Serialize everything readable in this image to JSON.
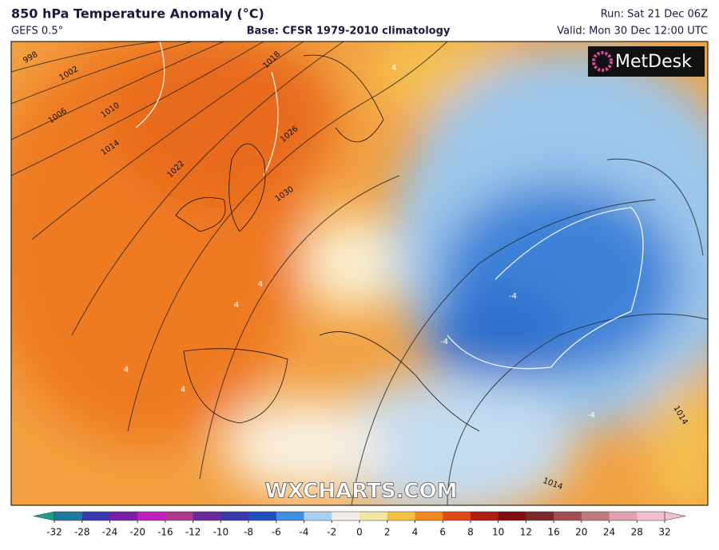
{
  "header": {
    "title": "850 hPa Temperature Anomaly (°C)",
    "model": "GEFS 0.5°",
    "base": "Base: CFSR 1979-2010 climatology",
    "run": "Run: Sat 21 Dec 06Z",
    "valid": "Valid: Mon 30 Dec 12:00 UTC"
  },
  "logo": "MetDesk",
  "watermark": "WXCHARTS.COM",
  "isobar_labels": [
    "998",
    "1002",
    "1006",
    "1010",
    "1014",
    "1018",
    "1022",
    "1026",
    "1030",
    "1014",
    "1014"
  ],
  "anomaly_labels": [
    "4",
    "4",
    "4",
    "4",
    "4",
    "-4",
    "-4",
    "-4"
  ],
  "colorbar": {
    "ticks": [
      -32,
      -28,
      -24,
      -20,
      -16,
      -12,
      -10,
      -8,
      -6,
      -4,
      -2,
      0,
      2,
      4,
      6,
      8,
      10,
      12,
      16,
      20,
      24,
      28,
      32
    ],
    "colors": [
      "#1b9e8c",
      "#1f7aa0",
      "#3a3ab0",
      "#7a1fa5",
      "#c01fc0",
      "#b0388a",
      "#6a2a9a",
      "#3a3aaa",
      "#2050c0",
      "#3f8fe0",
      "#a8d0f0",
      "#f0eee6",
      "#f5e6a0",
      "#f5c040",
      "#f08a20",
      "#e04a10",
      "#b02010",
      "#801010",
      "#7a2a2a",
      "#a05050",
      "#c07a7a",
      "#e0a0b0",
      "#f0c0d0"
    ]
  }
}
